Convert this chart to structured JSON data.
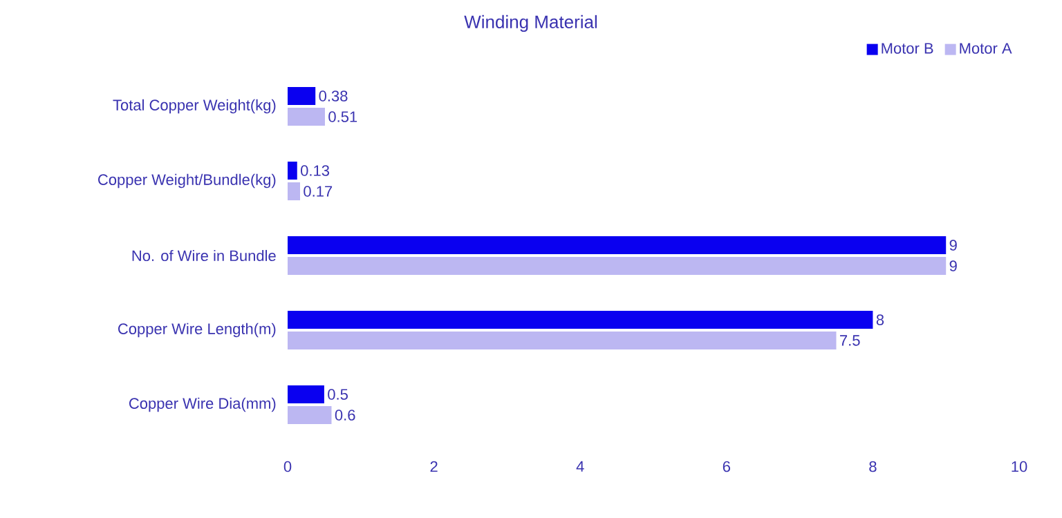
{
  "chart_data": {
    "type": "bar",
    "orientation": "horizontal",
    "title": "Winding Material",
    "categories": [
      "Total Copper Weight(kg)",
      "Copper Weight/Bundle(kg)",
      "No. of Wire in Bundle",
      "Copper Wire Length(m)",
      "Copper Wire Dia(mm)"
    ],
    "series": [
      {
        "name": "Motor B",
        "color": "#0a00f0",
        "values": [
          0.38,
          0.13,
          9,
          8,
          0.5
        ]
      },
      {
        "name": "Motor A",
        "color": "#bcb7f2",
        "values": [
          0.51,
          0.17,
          9,
          7.5,
          0.6
        ]
      }
    ],
    "xlim": [
      0,
      10
    ],
    "xticks": [
      0,
      2,
      4,
      6,
      8,
      10
    ],
    "legend": "top right",
    "data_labels": true
  }
}
